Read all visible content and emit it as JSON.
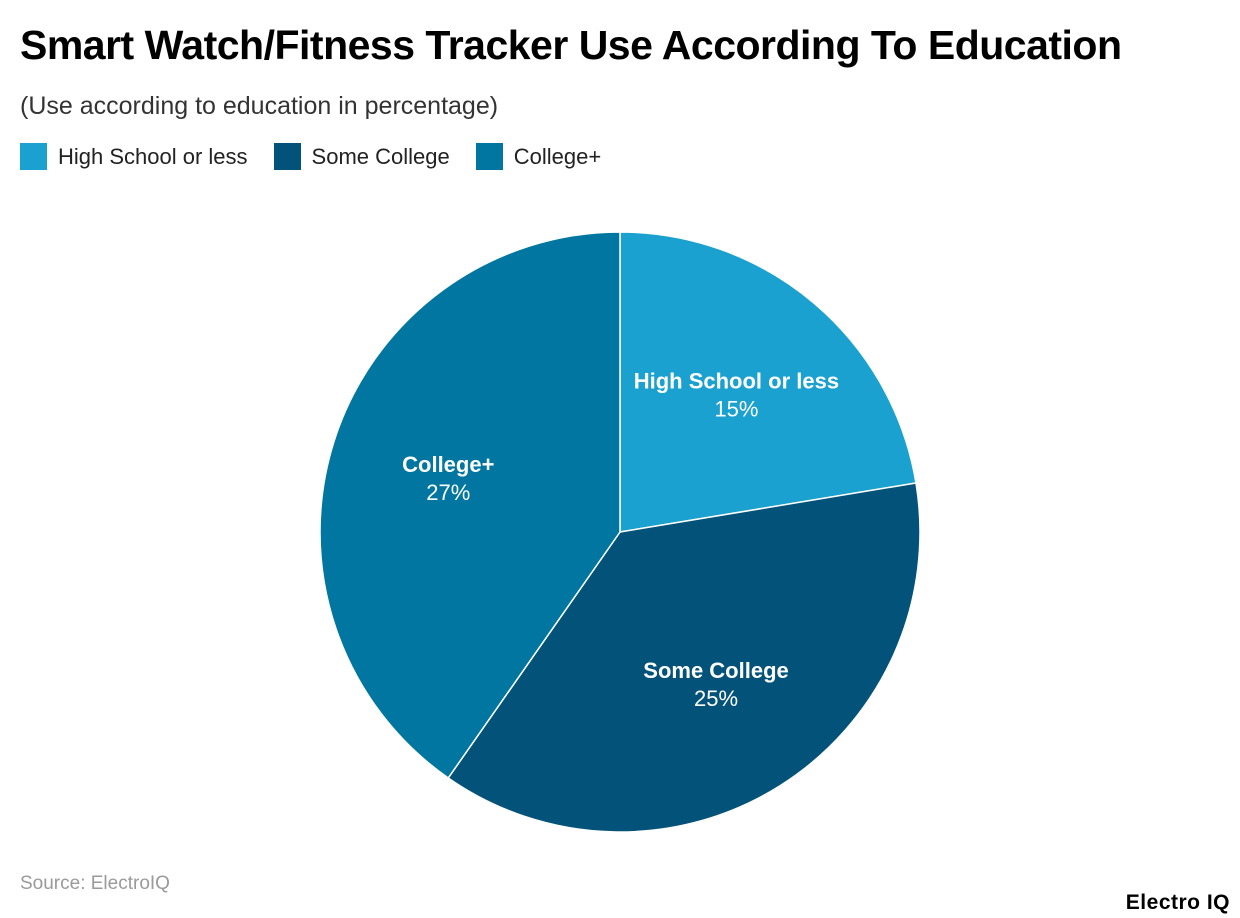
{
  "chart_data": {
    "type": "pie",
    "title": "Smart Watch/Fitness Tracker Use According To Education",
    "subtitle": "(Use according to education in percentage)",
    "categories": [
      "High School or less",
      "Some College",
      "College+"
    ],
    "values": [
      15,
      25,
      27
    ],
    "value_labels": [
      "15%",
      "25%",
      "27%"
    ],
    "colors": [
      "#1ba1cf",
      "#03527a",
      "#0176a1"
    ],
    "legend_position": "top-left"
  },
  "footer": {
    "source": "Source: ElectroIQ",
    "brand": "Electro IQ"
  }
}
